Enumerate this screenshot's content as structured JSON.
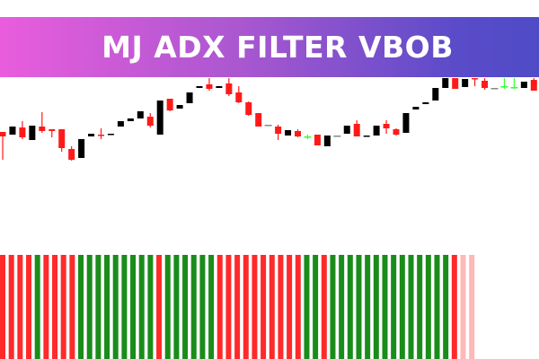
{
  "banner": {
    "title": "MJ ADX FILTER VBOB"
  },
  "colors": {
    "bear": "#ff1a1a",
    "bull": "#000000",
    "doji": "#33ff33",
    "flat": "#888888",
    "up": "#1a8c1a",
    "down": "#ff2a2a",
    "weak": "#ffb8b8",
    "banner_start": "#e95ddd",
    "banner_end": "#4f4bc6"
  },
  "chart_data": [
    {
      "type": "candlestick",
      "candles": [
        [
          "bear",
          53,
          48,
          53,
          22
        ],
        [
          "bull",
          59,
          50
        ],
        [
          "bear",
          58,
          47,
          65,
          45
        ],
        [
          "bull",
          60,
          44
        ],
        [
          "bear",
          59,
          54,
          75,
          52
        ],
        [
          "bear",
          56,
          54,
          56,
          47
        ],
        [
          "bear",
          56,
          35,
          56,
          31
        ],
        [
          "bear",
          34,
          22,
          37,
          21
        ],
        [
          "bull",
          45,
          24
        ],
        [
          "bull",
          51,
          48
        ],
        [
          "bear",
          50,
          49,
          57,
          45
        ],
        [
          "bull",
          51,
          50
        ],
        [
          "bull",
          65,
          59
        ],
        [
          "bull",
          68,
          65
        ],
        [
          "bull",
          76,
          68
        ],
        [
          "bear",
          70,
          60,
          74,
          58
        ],
        [
          "bull",
          88,
          50
        ],
        [
          "bear",
          90,
          77,
          90,
          76
        ],
        [
          "bull",
          83,
          79
        ],
        [
          "bull",
          97,
          85
        ],
        [
          "bull",
          104,
          102
        ],
        [
          "bear",
          106,
          101,
          113,
          99
        ],
        [
          "bull",
          104,
          102
        ],
        [
          "bear",
          107,
          95,
          113,
          93
        ],
        [
          "bear",
          97,
          86,
          104,
          85
        ],
        [
          "bear",
          86,
          72,
          87,
          71
        ],
        [
          "bear",
          74,
          59
        ],
        [
          "flat",
          61,
          60
        ],
        [
          "bear",
          59,
          51,
          61,
          44
        ],
        [
          "bull",
          55,
          49
        ],
        [
          "bear",
          54,
          48,
          56,
          47
        ],
        [
          "doji",
          48,
          48,
          50,
          45
        ],
        [
          "bear",
          50,
          38
        ],
        [
          "bull",
          49,
          37
        ],
        [
          "flat",
          49,
          48
        ],
        [
          "bull",
          60,
          51
        ],
        [
          "bear",
          62,
          48,
          66,
          48
        ],
        [
          "bull",
          49,
          48
        ],
        [
          "bull",
          60,
          49
        ],
        [
          "bear",
          62,
          57,
          66,
          51
        ],
        [
          "bear",
          56,
          50,
          57,
          49
        ],
        [
          "bull",
          74,
          52
        ],
        [
          "bull",
          81,
          78
        ],
        [
          "bull",
          86,
          84
        ],
        [
          "bull",
          102,
          88
        ],
        [
          "bull",
          113,
          102
        ],
        [
          "bear",
          113,
          101
        ],
        [
          "bull",
          112,
          103
        ],
        [
          "bear",
          113,
          112,
          113,
          104
        ],
        [
          "bear",
          110,
          102,
          113,
          100
        ],
        [
          "flat",
          102,
          101
        ],
        [
          "doji",
          104,
          104,
          113,
          101
        ],
        [
          "doji",
          103,
          103,
          113,
          101
        ],
        [
          "bull",
          109,
          102
        ],
        [
          "bear",
          111,
          99,
          113,
          99
        ]
      ]
    },
    {
      "type": "histogram",
      "bars": [
        "down",
        "down",
        "down",
        "down",
        "up",
        "down",
        "down",
        "down",
        "down",
        "up",
        "up",
        "up",
        "up",
        "up",
        "up",
        "up",
        "up",
        "up",
        "down",
        "up",
        "up",
        "up",
        "up",
        "up",
        "up",
        "down",
        "down",
        "down",
        "down",
        "down",
        "down",
        "down",
        "down",
        "down",
        "down",
        "up",
        "up",
        "down",
        "up",
        "up",
        "up",
        "up",
        "up",
        "up",
        "up",
        "up",
        "up",
        "up",
        "up",
        "up",
        "up",
        "up",
        "down",
        "weak",
        "weak"
      ]
    }
  ]
}
